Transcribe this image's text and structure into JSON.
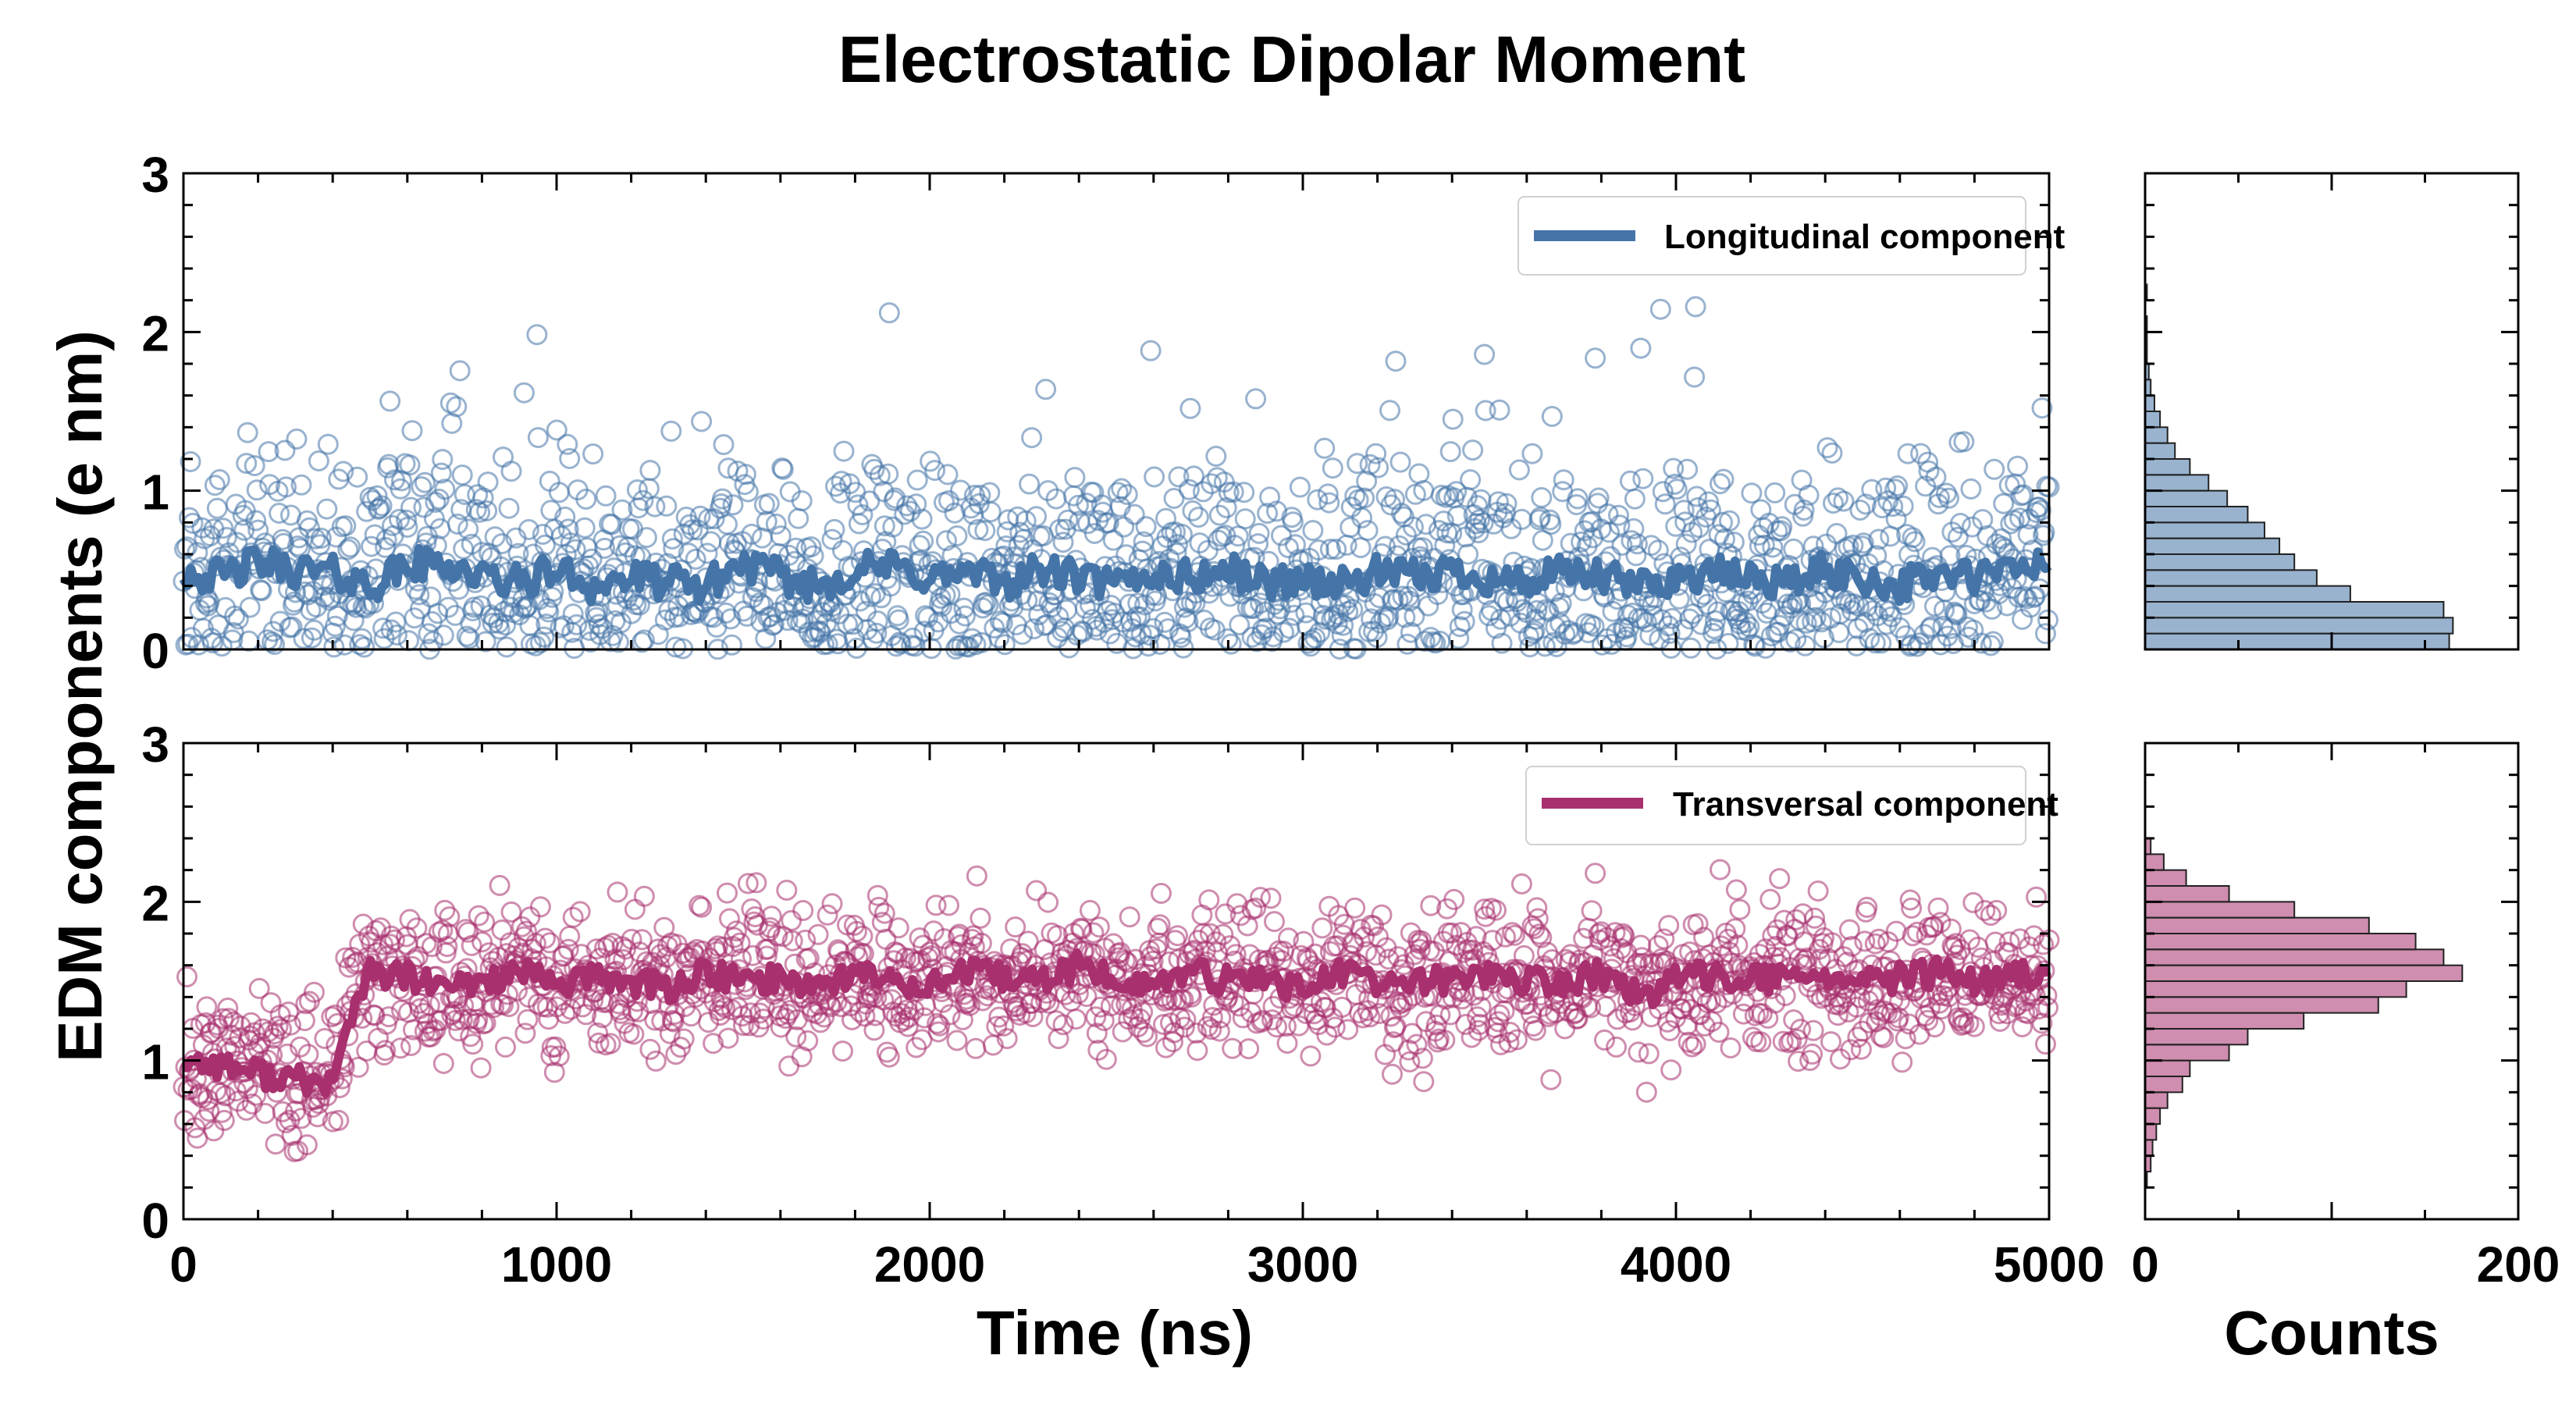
{
  "figure_title": "Electrostatic Dipolar Moment",
  "chart_data": [
    {
      "type": "scatter",
      "panel": "longitudinal",
      "xlim": [
        0,
        5000
      ],
      "ylim": [
        0,
        3
      ],
      "x_ticks": [
        "0",
        "1000",
        "2000",
        "3000",
        "4000",
        "5000"
      ],
      "y_ticks": [
        "0",
        "1",
        "2",
        "3"
      ],
      "xlabel": "Time (ns)",
      "ylabel": "EDM components (e nm)",
      "grid": false,
      "legend_placement": "top-right",
      "series": [
        {
          "name": "Longitudinal component",
          "color": "#4575a8",
          "style": "thick line (running average) over hollow circle markers (raw samples)",
          "running_average": {
            "x": [
              0,
              100,
              200,
              300,
              400,
              500,
              600,
              700,
              800,
              900,
              1000,
              1100,
              1200,
              1300,
              1400,
              1500,
              1600,
              1700,
              1800,
              1900,
              2000,
              2100,
              2200,
              2300,
              2400,
              2500,
              2600,
              2700,
              2800,
              2900,
              3000,
              3100,
              3200,
              3300,
              3400,
              3500,
              3600,
              3700,
              3800,
              3900,
              4000,
              4100,
              4200,
              4300,
              4400,
              4500,
              4600,
              4700,
              4800,
              4900,
              5000
            ],
            "y": [
              0.5,
              0.45,
              0.55,
              0.5,
              0.48,
              0.4,
              0.52,
              0.55,
              0.45,
              0.42,
              0.5,
              0.4,
              0.45,
              0.42,
              0.4,
              0.55,
              0.45,
              0.4,
              0.5,
              0.52,
              0.45,
              0.48,
              0.42,
              0.5,
              0.45,
              0.4,
              0.48,
              0.45,
              0.5,
              0.42,
              0.45,
              0.4,
              0.48,
              0.45,
              0.5,
              0.45,
              0.42,
              0.48,
              0.45,
              0.4,
              0.45,
              0.48,
              0.45,
              0.42,
              0.5,
              0.45,
              0.4,
              0.48,
              0.45,
              0.5,
              0.55
            ]
          },
          "scatter_summary": {
            "count": 3000,
            "min": 0.0,
            "max": 2.28,
            "peak": 0.2
          }
        }
      ]
    },
    {
      "type": "scatter",
      "panel": "transversal",
      "xlim": [
        0,
        5000
      ],
      "ylim": [
        0,
        3
      ],
      "x_ticks": [
        "0",
        "1000",
        "2000",
        "3000",
        "4000",
        "5000"
      ],
      "y_ticks": [
        "0",
        "1",
        "2",
        "3"
      ],
      "xlabel": "Time (ns)",
      "ylabel": "EDM components (e nm)",
      "grid": false,
      "legend_placement": "top-right",
      "series": [
        {
          "name": "Transversal component",
          "color": "#a8306e",
          "style": "thick line (running average) over hollow circle markers (raw samples)",
          "running_average": {
            "x": [
              0,
              100,
              200,
              300,
              400,
              450,
              500,
              600,
              700,
              800,
              900,
              1000,
              1100,
              1200,
              1300,
              1400,
              1500,
              1600,
              1700,
              1800,
              1900,
              2000,
              2100,
              2200,
              2300,
              2400,
              2500,
              2600,
              2700,
              2800,
              2900,
              3000,
              3100,
              3200,
              3300,
              3400,
              3500,
              3600,
              3700,
              3800,
              3900,
              4000,
              4100,
              4200,
              4300,
              4400,
              4500,
              4600,
              4700,
              4800,
              4900,
              5000
            ],
            "y": [
              1.0,
              0.98,
              0.92,
              0.88,
              0.85,
              1.3,
              1.55,
              1.52,
              1.45,
              1.5,
              1.55,
              1.48,
              1.52,
              1.5,
              1.45,
              1.55,
              1.5,
              1.52,
              1.48,
              1.55,
              1.5,
              1.48,
              1.55,
              1.52,
              1.5,
              1.6,
              1.5,
              1.48,
              1.55,
              1.5,
              1.52,
              1.45,
              1.55,
              1.5,
              1.48,
              1.52,
              1.55,
              1.5,
              1.48,
              1.55,
              1.4,
              1.5,
              1.55,
              1.52,
              1.5,
              1.55,
              1.48,
              1.52,
              1.55,
              1.5,
              1.52,
              1.55
            ]
          },
          "scatter_summary": {
            "count": 3000,
            "min": 0.28,
            "max": 2.35,
            "peak": 1.5
          }
        }
      ]
    },
    {
      "type": "bar",
      "panel": "longitudinal-histogram",
      "orientation": "horizontal",
      "color": "#4575a8",
      "xlim": [
        0,
        200
      ],
      "ylim": [
        0,
        3
      ],
      "x_ticks": [
        "0",
        "200"
      ],
      "xlabel": "Counts",
      "bin_edges_y": [
        0.0,
        0.1,
        0.2,
        0.3,
        0.4,
        0.5,
        0.6,
        0.7,
        0.8,
        0.9,
        1.0,
        1.1,
        1.2,
        1.3,
        1.4,
        1.5,
        1.6,
        1.7,
        1.8,
        1.9,
        2.0,
        2.1,
        2.2,
        2.3,
        2.4
      ],
      "counts": [
        163,
        165,
        160,
        110,
        92,
        80,
        72,
        64,
        55,
        44,
        34,
        24,
        16,
        12,
        8,
        5,
        3,
        2,
        1,
        1,
        1,
        0,
        1,
        0
      ]
    },
    {
      "type": "bar",
      "panel": "transversal-histogram",
      "orientation": "horizontal",
      "color": "#a8306e",
      "xlim": [
        0,
        200
      ],
      "ylim": [
        0,
        3
      ],
      "x_ticks": [
        "0",
        "200"
      ],
      "xlabel": "Counts",
      "bin_edges_y": [
        0.2,
        0.3,
        0.4,
        0.5,
        0.6,
        0.7,
        0.8,
        0.9,
        1.0,
        1.1,
        1.2,
        1.3,
        1.4,
        1.5,
        1.6,
        1.7,
        1.8,
        1.9,
        2.0,
        2.1,
        2.2,
        2.3,
        2.4
      ],
      "counts": [
        1,
        3,
        4,
        6,
        8,
        12,
        20,
        24,
        45,
        55,
        85,
        125,
        140,
        170,
        160,
        145,
        120,
        80,
        45,
        22,
        10,
        3
      ]
    }
  ]
}
